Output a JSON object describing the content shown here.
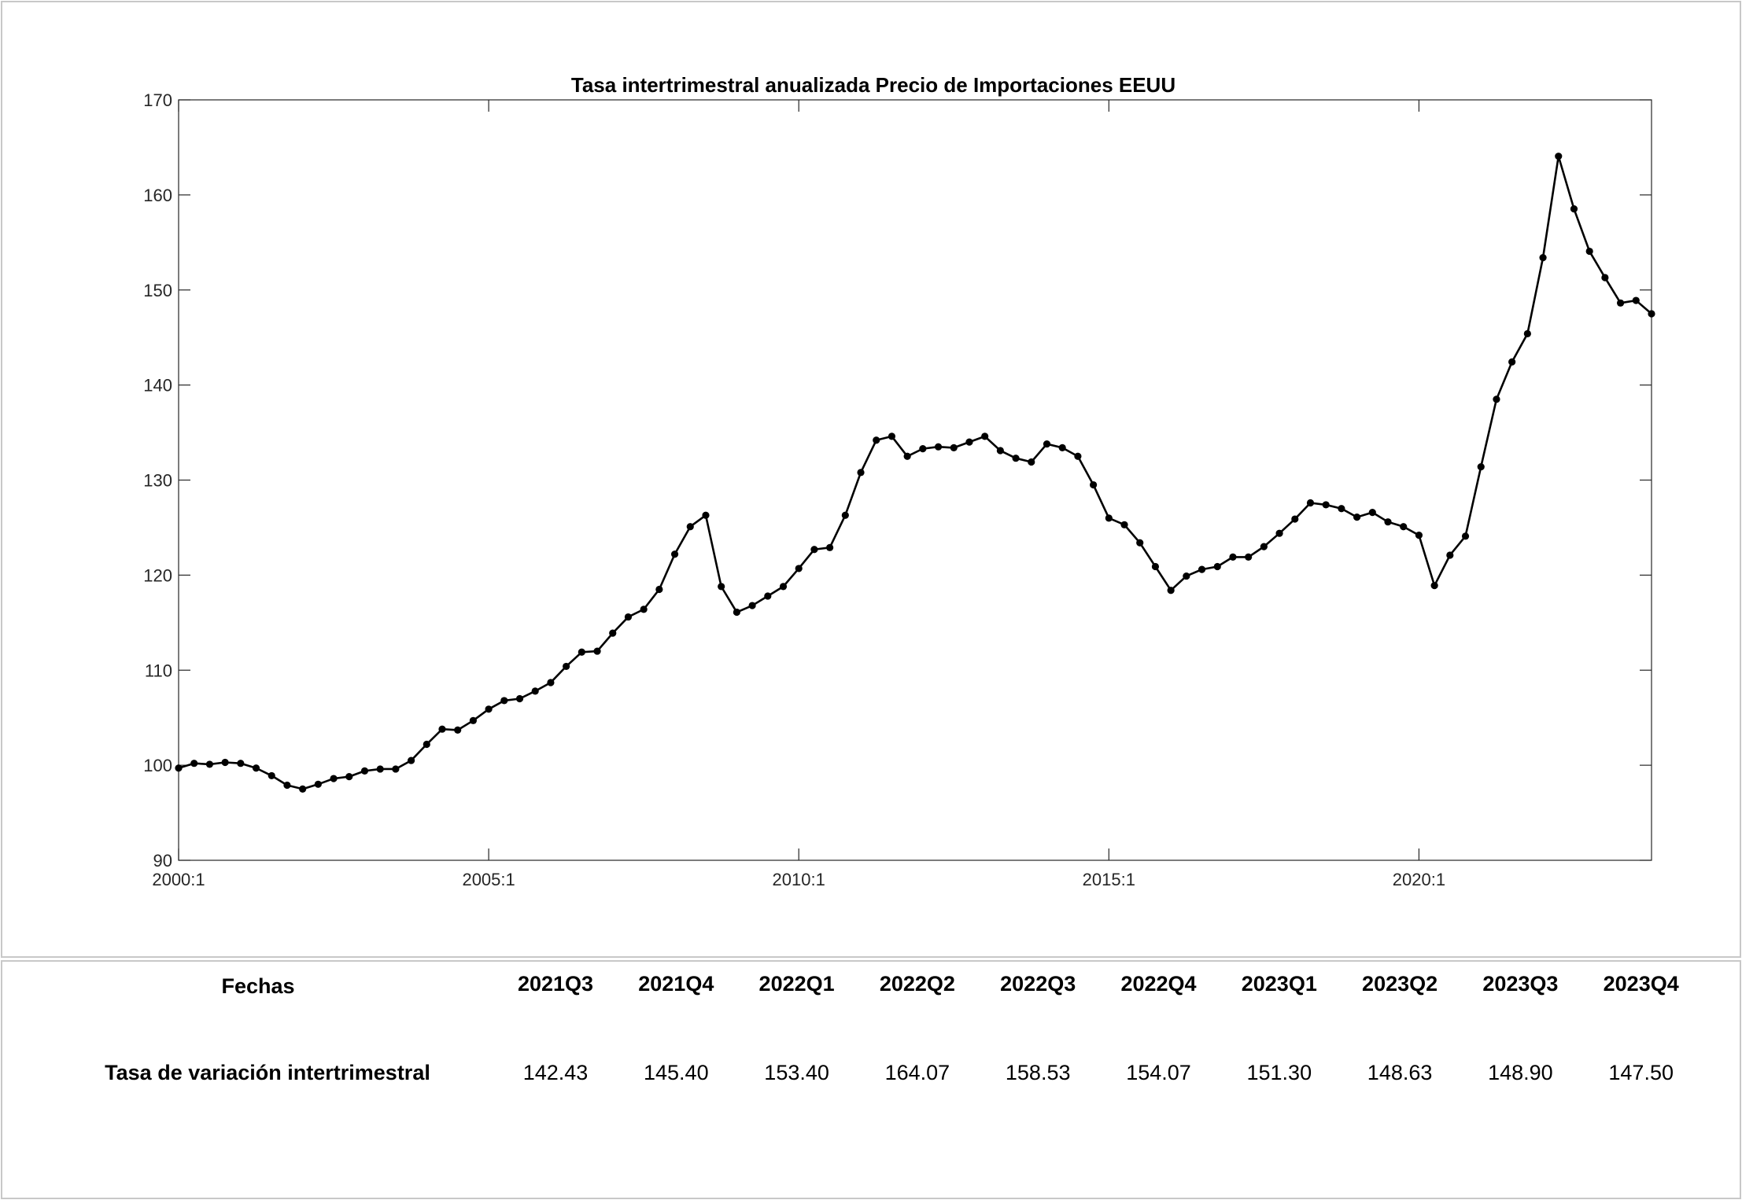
{
  "chart_data": {
    "type": "line",
    "title": "Tasa intertrimestral anualizada Precio de Importaciones EEUU",
    "xlabel": "",
    "ylabel": "",
    "ylim": [
      90,
      170
    ],
    "yticks": [
      90,
      100,
      110,
      120,
      130,
      140,
      150,
      160,
      170
    ],
    "xticks": [
      {
        "label": "2000:1",
        "index": 0
      },
      {
        "label": "2005:1",
        "index": 20
      },
      {
        "label": "2010:1",
        "index": 40
      },
      {
        "label": "2015:1",
        "index": 60
      },
      {
        "label": "2020:1",
        "index": 80
      }
    ],
    "grid": false,
    "marker": "circle",
    "series": [
      {
        "values": [
          99.7,
          100.2,
          100.1,
          100.3,
          100.2,
          99.7,
          98.9,
          97.9,
          97.5,
          98.0,
          98.6,
          98.8,
          99.4,
          99.6,
          99.6,
          100.5,
          102.2,
          103.8,
          103.7,
          104.7,
          105.9,
          106.8,
          107.0,
          107.8,
          108.7,
          110.4,
          111.9,
          112.0,
          113.9,
          115.6,
          116.4,
          118.5,
          122.2,
          125.1,
          126.3,
          118.8,
          116.1,
          116.8,
          117.8,
          118.8,
          120.7,
          122.7,
          122.9,
          126.3,
          130.8,
          134.2,
          134.6,
          132.5,
          133.3,
          133.5,
          133.4,
          134.0,
          134.6,
          133.1,
          132.3,
          131.9,
          133.8,
          133.4,
          132.5,
          129.5,
          126.0,
          125.3,
          123.4,
          120.9,
          118.4,
          119.9,
          120.6,
          120.9,
          121.9,
          121.9,
          123.0,
          124.4,
          125.9,
          127.6,
          127.4,
          127.0,
          126.1,
          126.6,
          125.6,
          125.1,
          124.2,
          118.9,
          122.1,
          124.1,
          131.4,
          138.5,
          142.43,
          145.4,
          153.4,
          164.07,
          158.53,
          154.07,
          151.3,
          148.63,
          148.9,
          147.5
        ]
      }
    ]
  },
  "table": {
    "header_label": "Fechas",
    "row_label": "Tasa de variación intertrimestral",
    "columns": [
      "2021Q3",
      "2021Q4",
      "2022Q1",
      "2022Q2",
      "2022Q3",
      "2022Q4",
      "2023Q1",
      "2023Q2",
      "2023Q3",
      "2023Q4"
    ],
    "values": [
      "142.43",
      "145.40",
      "153.40",
      "164.07",
      "158.53",
      "154.07",
      "151.30",
      "148.63",
      "148.90",
      "147.50"
    ]
  }
}
